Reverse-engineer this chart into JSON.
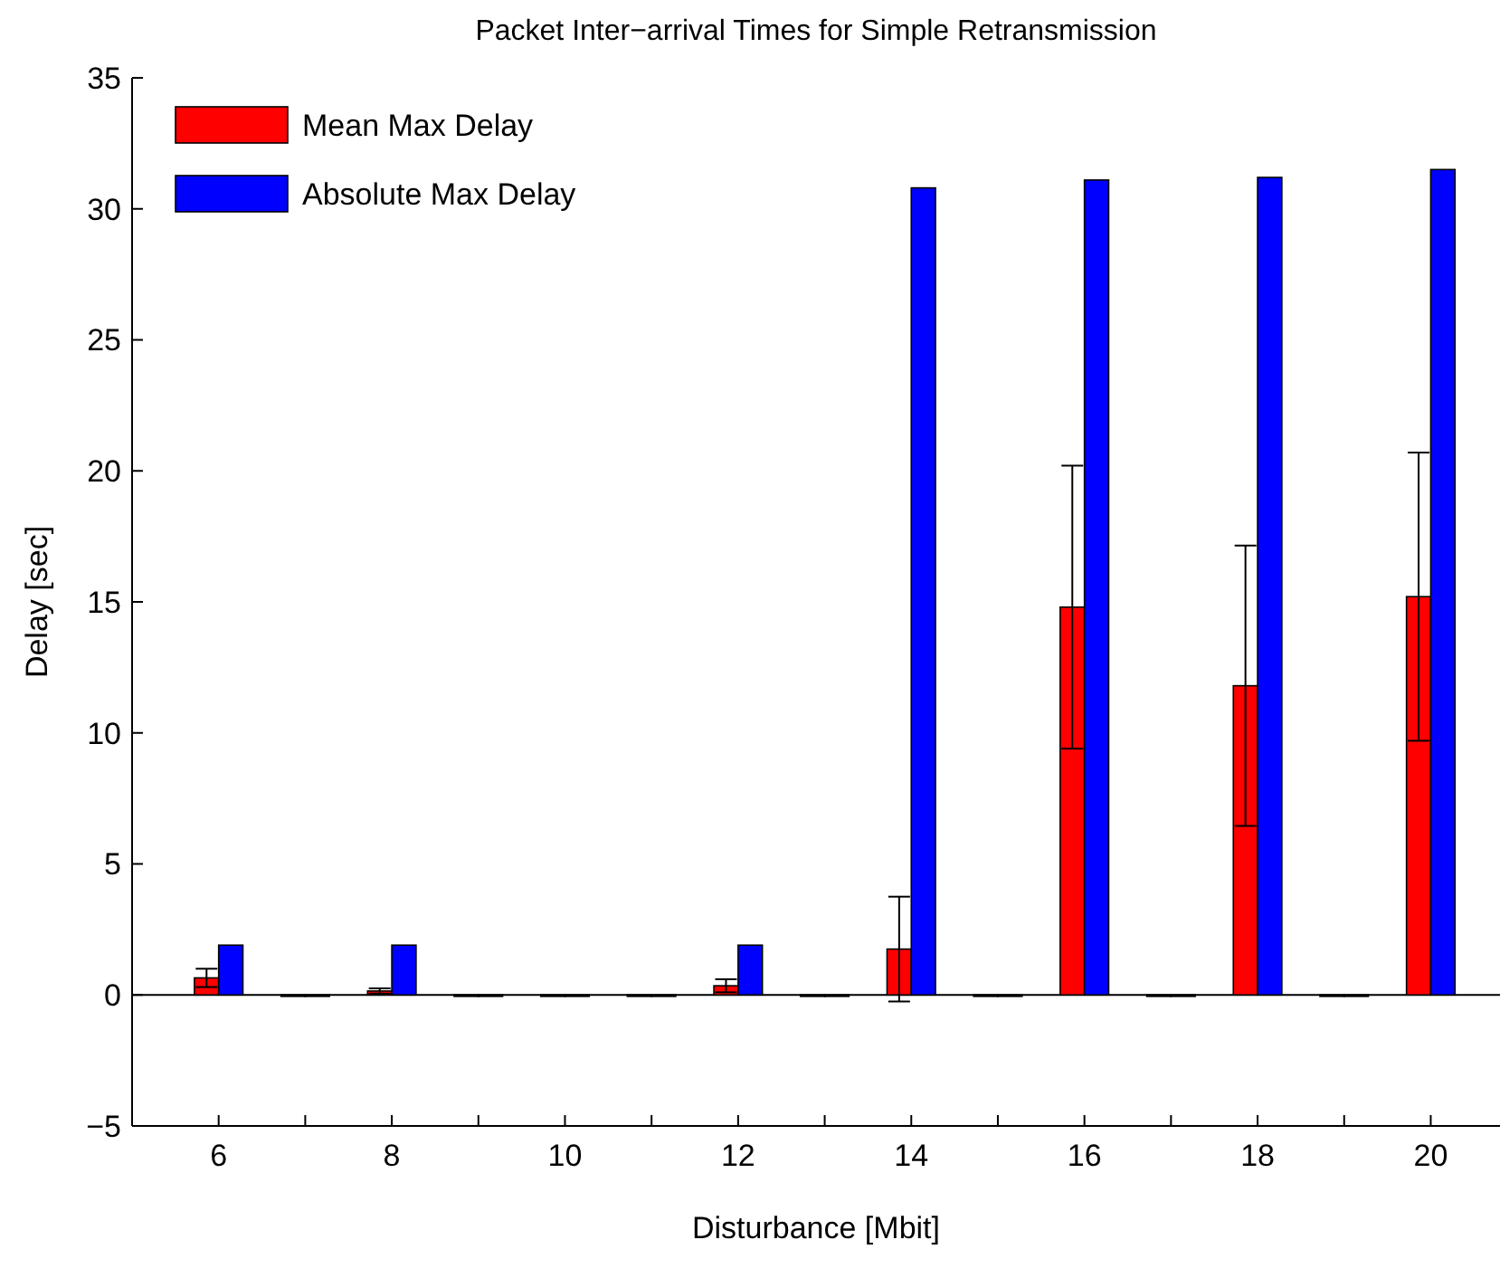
{
  "chart_data": {
    "type": "bar",
    "title": "Packet Inter−arrival Times for Simple Retransmission",
    "xlabel": "Disturbance [Mbit]",
    "ylabel": "Delay [sec]",
    "x": [
      6,
      7,
      8,
      9,
      10,
      11,
      12,
      13,
      14,
      15,
      16,
      17,
      18,
      19,
      20
    ],
    "series": [
      {
        "name": "Mean Max Delay",
        "color": "#ff0000",
        "values": [
          0.65,
          0,
          0.15,
          0,
          0,
          0,
          0.35,
          0,
          1.75,
          0,
          14.8,
          0,
          11.8,
          0,
          15.2
        ],
        "errors": [
          0.35,
          null,
          0.1,
          null,
          null,
          null,
          0.25,
          null,
          2.0,
          null,
          5.4,
          null,
          5.35,
          null,
          5.5
        ]
      },
      {
        "name": "Absolute Max Delay",
        "color": "#0000ff",
        "values": [
          1.9,
          0,
          1.9,
          0,
          0,
          0,
          1.9,
          0,
          30.8,
          0,
          31.1,
          0,
          31.2,
          0,
          31.5
        ]
      }
    ],
    "xlim": [
      5,
      20.8
    ],
    "xticks": [
      6,
      {
        "value": 7,
        "label": null
      },
      8,
      {
        "value": 9,
        "label": null
      },
      10,
      {
        "value": 11,
        "label": null
      },
      12,
      {
        "value": 13,
        "label": null
      },
      14,
      {
        "value": 15,
        "label": null
      },
      16,
      {
        "value": 17,
        "label": null
      },
      18,
      {
        "value": 19,
        "label": null
      },
      20
    ],
    "ylim": [
      -5,
      35
    ],
    "yticks": [
      {
        "value": -5,
        "label": "−5"
      },
      0,
      5,
      10,
      15,
      20,
      25,
      30,
      35
    ],
    "ref_lines": [
      {
        "axis": "y",
        "value": 0,
        "color": "#000000"
      }
    ],
    "legend": "top left"
  }
}
